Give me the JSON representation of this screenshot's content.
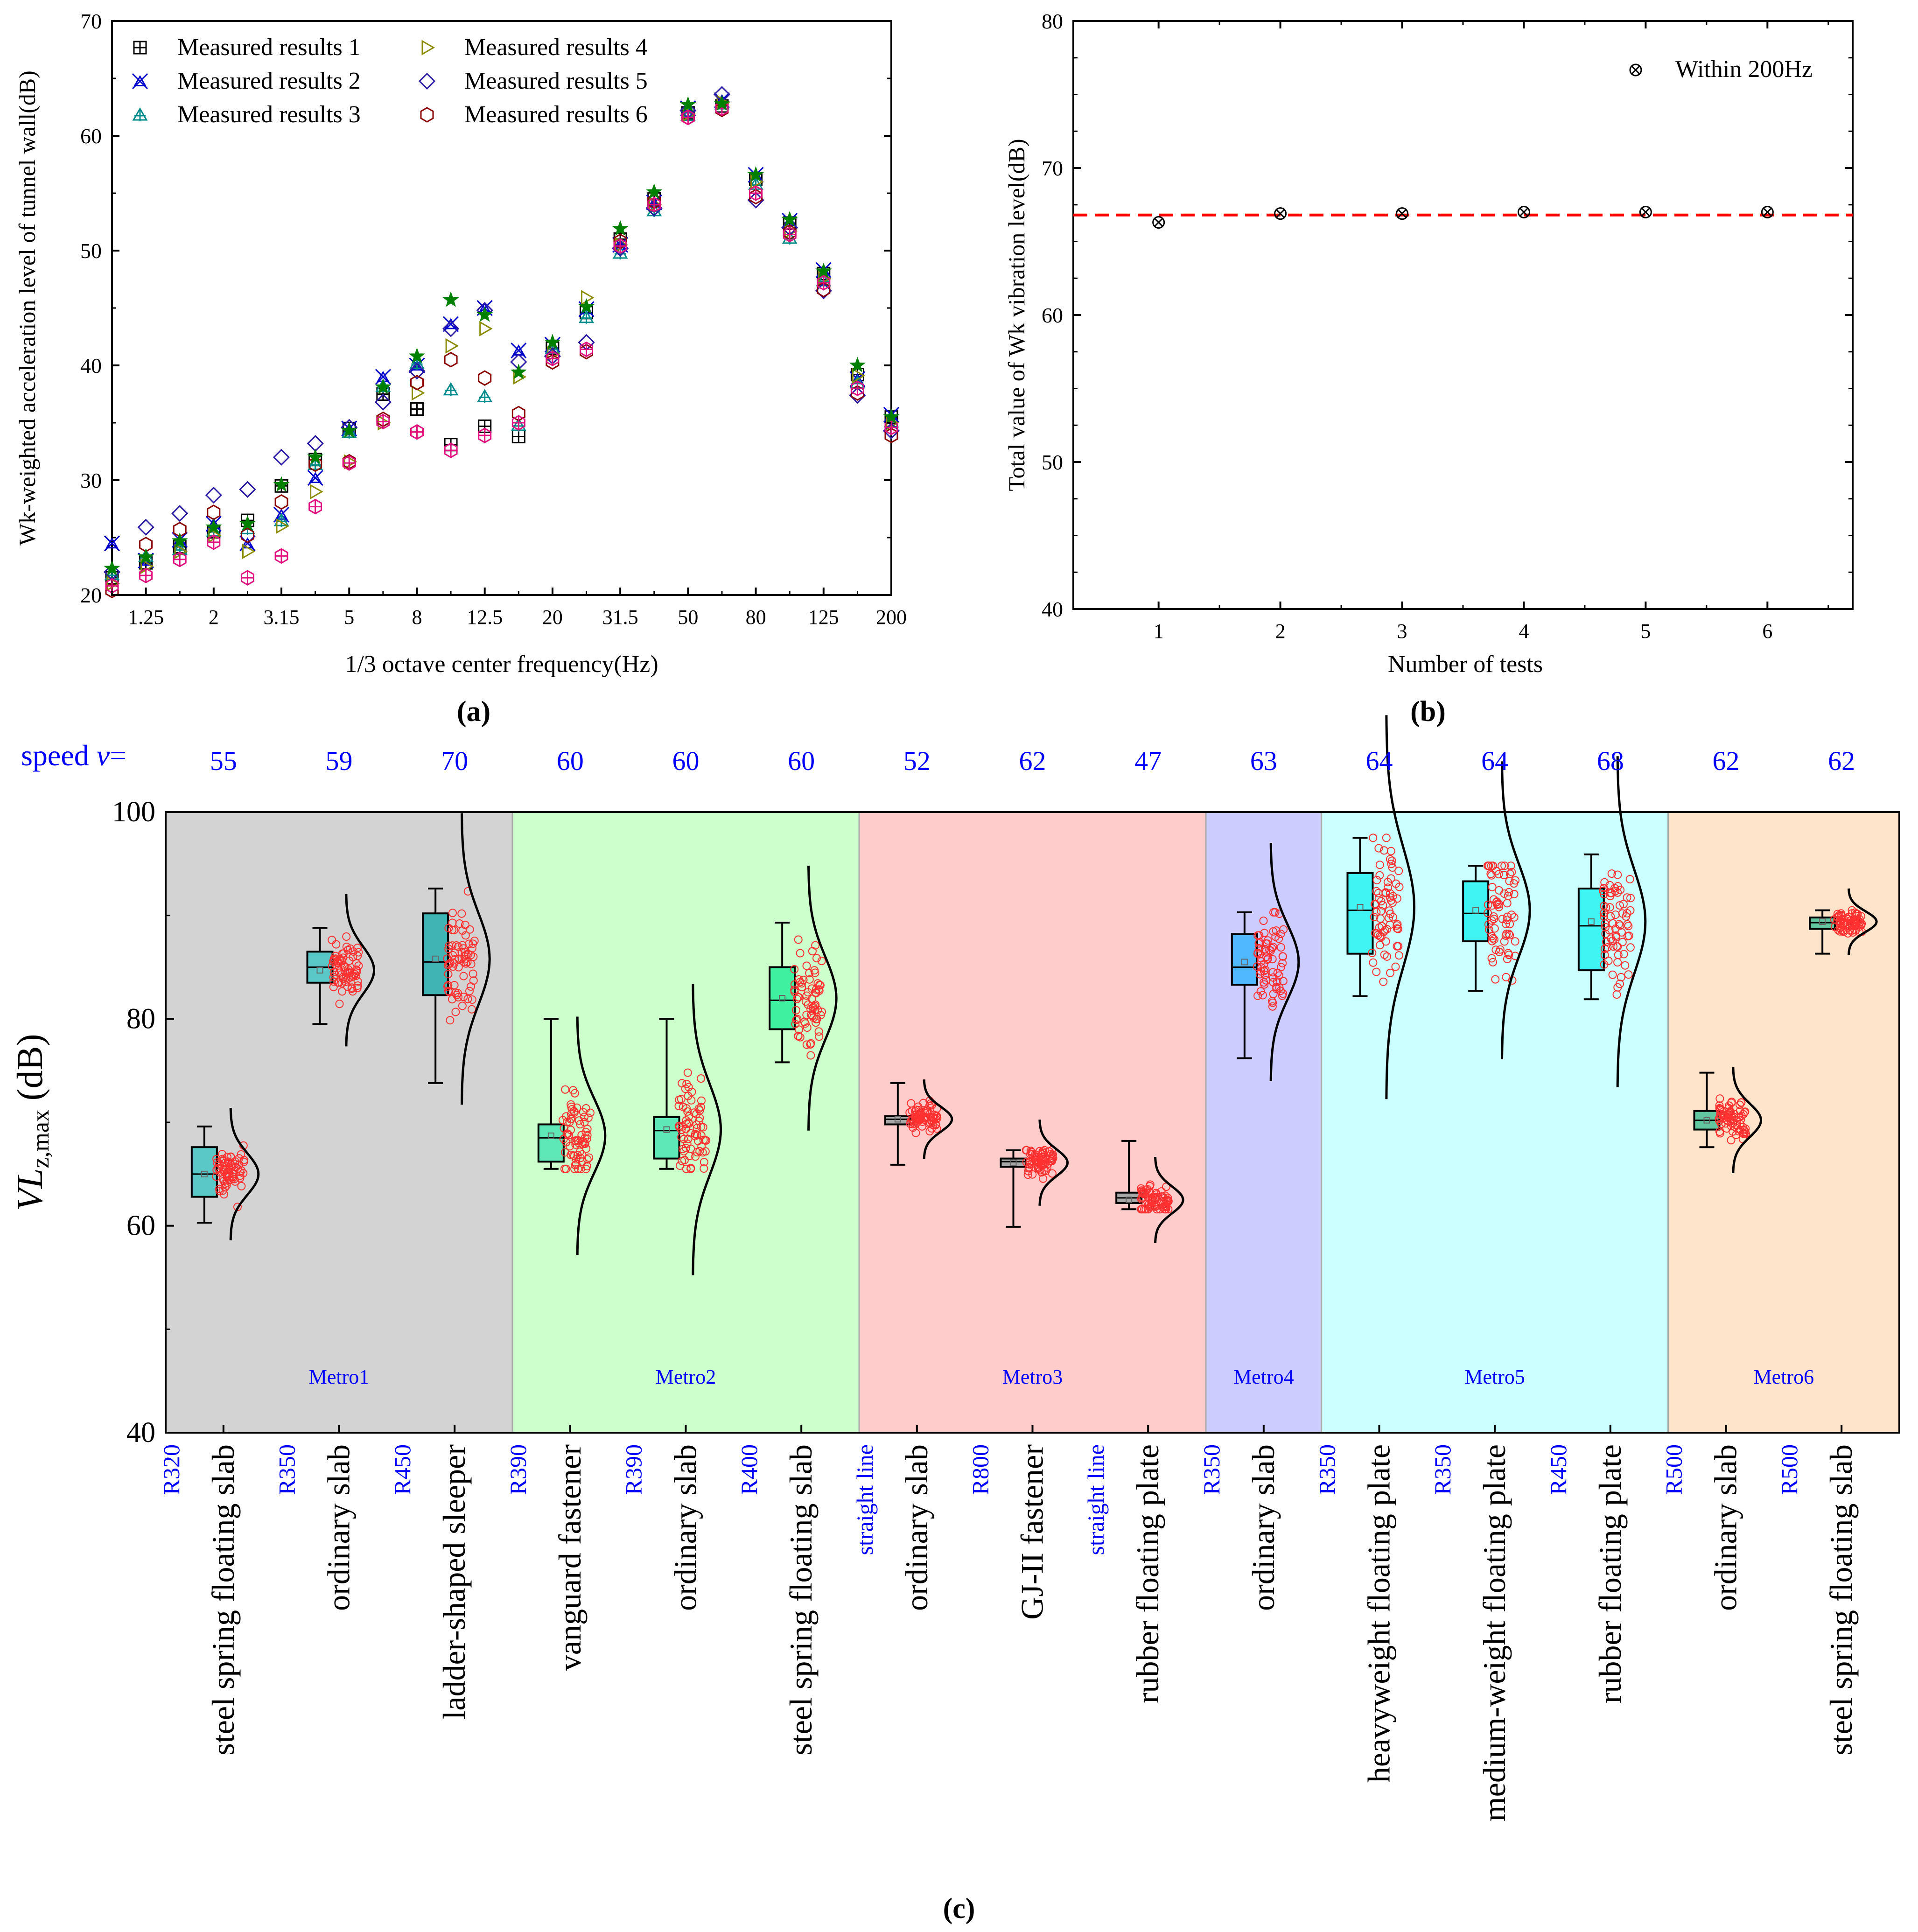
{
  "colors": {
    "series": [
      "#000000",
      "#0000cc",
      "#008b8b",
      "#8b8b00",
      "#2a1aa6",
      "#8b0000"
    ],
    "extra_marker": "#e0117f",
    "star_marker": "#008000",
    "dashed_line": "#ff0000",
    "speed_text": "#0000ff",
    "radius_text": "#0000ff",
    "metro_text": "#0000ff",
    "dots": "#ff3030"
  },
  "panel_a": {
    "caption": "(a)",
    "chart_data": {
      "type": "scatter",
      "title": "",
      "xlabel": "1/3 octave center frequency(Hz)",
      "ylabel": "Wk-weighted acceleration level of tunnel wall(dB)",
      "ylim": [
        20,
        70
      ],
      "yticks": [
        "20",
        "30",
        "40",
        "50",
        "60",
        "70"
      ],
      "categories": [
        "1",
        "1.25",
        "1.6",
        "2",
        "2.5",
        "3.15",
        "4",
        "5",
        "6.3",
        "8",
        "10",
        "12.5",
        "16",
        "20",
        "25",
        "31.5",
        "40",
        "50",
        "63",
        "80",
        "100",
        "125",
        "160",
        "200"
      ],
      "tick_labels": [
        "1.25",
        "2",
        "3.15",
        "5",
        "8",
        "12.5",
        "20",
        "31.5",
        "50",
        "80",
        "125",
        "200"
      ],
      "legend": [
        "Measured results 1",
        "Measured results 2",
        "Measured results 3",
        "Measured results 4",
        "Measured results 5",
        "Measured results 6"
      ],
      "legend_position": "top-left",
      "series": [
        {
          "name": "Measured results 1",
          "marker": "square-plus",
          "values": [
            21.5,
            22.8,
            24.2,
            25.5,
            26.5,
            29.5,
            31.8,
            34.5,
            37.5,
            36.2,
            33.1,
            34.7,
            33.8,
            41.5,
            44.6,
            51.0,
            54.5,
            62.0,
            62.6,
            56.2,
            52.4,
            48.0,
            39.2,
            35.5
          ]
        },
        {
          "name": "Measured results 2",
          "marker": "x-triangle",
          "values": [
            24.5,
            23.0,
            24.8,
            26.2,
            24.5,
            27.0,
            30.2,
            34.5,
            39.0,
            40.0,
            43.6,
            45.0,
            41.3,
            41.8,
            44.9,
            50.5,
            54.2,
            62.4,
            63.1,
            56.6,
            52.6,
            48.3,
            38.8,
            35.7
          ]
        },
        {
          "name": "Measured results 3",
          "marker": "triangle-plus",
          "values": [
            21.8,
            23.4,
            24.0,
            25.6,
            25.8,
            26.5,
            31.4,
            34.2,
            38.2,
            40.2,
            37.9,
            37.3,
            34.8,
            41.5,
            44.2,
            49.8,
            53.5,
            61.8,
            62.8,
            55.8,
            51.1,
            47.4,
            38.5,
            35.1
          ]
        },
        {
          "name": "Measured results 4",
          "marker": "triangle-right",
          "values": [
            21.0,
            22.5,
            23.8,
            25.2,
            23.8,
            26.0,
            29.0,
            31.6,
            35.0,
            37.6,
            41.7,
            43.2,
            39.0,
            41.0,
            45.9,
            50.5,
            54.0,
            61.9,
            62.9,
            56.0,
            51.7,
            47.6,
            39.1,
            35.0
          ]
        },
        {
          "name": "Measured results 5",
          "marker": "diamond",
          "values": [
            22.0,
            25.9,
            27.1,
            28.7,
            29.2,
            32.0,
            33.2,
            34.6,
            36.8,
            39.5,
            43.2,
            44.8,
            40.3,
            40.8,
            42.0,
            50.2,
            53.7,
            62.2,
            63.6,
            54.4,
            52.0,
            46.5,
            37.4,
            34.3
          ]
        },
        {
          "name": "Measured results 6",
          "marker": "hexagon",
          "values": [
            20.4,
            24.4,
            25.7,
            27.2,
            25.2,
            28.1,
            31.4,
            31.6,
            35.3,
            38.5,
            40.5,
            38.9,
            35.8,
            40.3,
            41.2,
            50.8,
            54.3,
            61.6,
            62.3,
            54.7,
            51.6,
            46.6,
            37.6,
            33.9
          ]
        }
      ],
      "extra_series": [
        {
          "name": "magenta-hexagon",
          "values": [
            20.8,
            21.7,
            23.1,
            24.6,
            21.5,
            23.4,
            27.7,
            31.5,
            35.1,
            34.2,
            32.6,
            33.9,
            35.0,
            40.6,
            41.4,
            50.4,
            54.0,
            61.6,
            62.4,
            55.0,
            51.4,
            47.2,
            38.0,
            34.6
          ]
        },
        {
          "name": "green-star",
          "values": [
            22.3,
            23.3,
            24.7,
            25.9,
            26.2,
            29.6,
            32.0,
            34.3,
            38.1,
            40.8,
            45.7,
            44.4,
            39.4,
            42.0,
            45.1,
            51.9,
            55.1,
            62.7,
            62.8,
            56.6,
            52.7,
            48.2,
            40.0,
            35.5
          ]
        }
      ]
    }
  },
  "panel_b": {
    "caption": "(b)",
    "chart_data": {
      "type": "scatter",
      "title": "",
      "xlabel": "Number of tests",
      "ylabel": "Total value of Wk vibration level(dB)",
      "x": [
        1,
        2,
        3,
        4,
        5,
        6
      ],
      "xticks": [
        "1",
        "2",
        "3",
        "4",
        "5",
        "6"
      ],
      "values": [
        66.3,
        66.9,
        66.9,
        67.0,
        67.0,
        67.0
      ],
      "ylim": [
        40,
        80
      ],
      "yticks": [
        "40",
        "50",
        "60",
        "70",
        "80"
      ],
      "reference_line": 66.8,
      "legend": [
        "Within 200Hz"
      ],
      "legend_position": "top-right"
    }
  },
  "panel_c": {
    "caption": "(c)",
    "speed_label": "speed",
    "speed_symbol": "v",
    "speed_suffix": "=",
    "chart_data": {
      "type": "box",
      "ylabel_main": "VL",
      "ylabel_sub": "z,max",
      "ylabel_unit": "(dB)",
      "ylim": [
        40,
        100
      ],
      "yticks": [
        "40",
        "60",
        "80",
        "100"
      ],
      "groups": [
        {
          "label": "Metro1",
          "color": "#d3d3d3",
          "span": [
            0,
            3
          ]
        },
        {
          "label": "Metro2",
          "color": "#ccffcc",
          "span": [
            3,
            6
          ]
        },
        {
          "label": "Metro3",
          "color": "#ffcccc",
          "span": [
            6,
            9
          ]
        },
        {
          "label": "Metro4",
          "color": "#ccccff",
          "span": [
            9,
            10
          ]
        },
        {
          "label": "Metro5",
          "color": "#ccffff",
          "span": [
            10,
            13
          ]
        },
        {
          "label": "Metro6",
          "color": "#ffe4cc",
          "span": [
            13,
            15
          ]
        }
      ],
      "boxes": [
        {
          "speed": "55",
          "radius": "R320",
          "track": "steel spring floating slab",
          "min": 60.3,
          "q1": 62.8,
          "median": 65.0,
          "mean": 65.0,
          "q3": 67.6,
          "max": 69.6,
          "color": "#5bc8c8",
          "spread": 2.0
        },
        {
          "speed": "59",
          "radius": "R350",
          "track": "ordinary slab",
          "min": 79.5,
          "q1": 83.5,
          "median": 85.0,
          "mean": 84.7,
          "q3": 86.5,
          "max": 88.8,
          "color": "#5bc8c8",
          "spread": 2.3
        },
        {
          "speed": "70",
          "radius": "R450",
          "track": "ladder-shaped sleeper",
          "min": 73.8,
          "q1": 82.3,
          "median": 85.5,
          "mean": 85.8,
          "q3": 90.2,
          "max": 92.6,
          "color": "#40b4b4",
          "spread": 4.4
        },
        {
          "speed": "60",
          "radius": "R390",
          "track": "vanguard fastener",
          "min": 65.5,
          "q1": 66.2,
          "median": 68.5,
          "mean": 68.7,
          "q3": 69.8,
          "max": 80.0,
          "color": "#5ee8b8",
          "spread": 3.6
        },
        {
          "speed": "60",
          "radius": "R390",
          "track": "ordinary slab",
          "min": 65.5,
          "q1": 66.5,
          "median": 69.2,
          "mean": 69.3,
          "q3": 70.5,
          "max": 80.0,
          "color": "#5ee8b8",
          "spread": 4.4
        },
        {
          "speed": "60",
          "radius": "R400",
          "track": "steel spring floating slab",
          "min": 75.8,
          "q1": 79.0,
          "median": 81.8,
          "mean": 82.0,
          "q3": 85.0,
          "max": 89.3,
          "color": "#3ef0a0",
          "spread": 4.0
        },
        {
          "speed": "52",
          "radius": "straight line",
          "track": "ordinary slab",
          "min": 65.9,
          "q1": 69.8,
          "median": 70.3,
          "mean": 70.3,
          "q3": 70.6,
          "max": 73.8,
          "color": "#a8a8a8",
          "spread": 1.2
        },
        {
          "speed": "62",
          "radius": "R800",
          "track": "GJ-II fastener",
          "min": 59.9,
          "q1": 65.7,
          "median": 66.2,
          "mean": 66.1,
          "q3": 66.5,
          "max": 67.3,
          "color": "#a8a8a8",
          "spread": 1.3
        },
        {
          "speed": "47",
          "radius": "straight line",
          "track": "rubber floating plate",
          "min": 61.6,
          "q1": 62.2,
          "median": 62.7,
          "mean": 62.5,
          "q3": 63.2,
          "max": 68.2,
          "color": "#a8a8a8",
          "spread": 1.3
        },
        {
          "speed": "63",
          "radius": "R350",
          "track": "ordinary slab",
          "min": 76.2,
          "q1": 83.3,
          "median": 85.0,
          "mean": 85.5,
          "q3": 88.2,
          "max": 90.3,
          "color": "#50b8ff",
          "spread": 3.6
        },
        {
          "speed": "64",
          "radius": "R350",
          "track": "heavyweight floating plate",
          "min": 82.2,
          "q1": 86.3,
          "median": 90.5,
          "mean": 90.8,
          "q3": 94.1,
          "max": 97.5,
          "color": "#40f4f4",
          "spread": 5.8
        },
        {
          "speed": "64",
          "radius": "R350",
          "track": "medium-weight floating plate",
          "min": 82.7,
          "q1": 87.5,
          "median": 90.2,
          "mean": 90.5,
          "q3": 93.3,
          "max": 94.8,
          "color": "#40f4f4",
          "spread": 4.5
        },
        {
          "speed": "68",
          "radius": "R450",
          "track": "rubber floating plate",
          "min": 81.9,
          "q1": 84.7,
          "median": 89.0,
          "mean": 89.4,
          "q3": 92.6,
          "max": 95.9,
          "color": "#40f4f4",
          "spread": 5.0
        },
        {
          "speed": "62",
          "radius": "R500",
          "track": "ordinary slab",
          "min": 67.6,
          "q1": 69.3,
          "median": 70.2,
          "mean": 70.2,
          "q3": 71.1,
          "max": 74.8,
          "color": "#62c6a0",
          "spread": 1.6
        },
        {
          "speed": "62",
          "radius": "R500",
          "track": "steel spring floating slab",
          "min": 86.3,
          "q1": 88.7,
          "median": 89.3,
          "mean": 89.4,
          "q3": 89.8,
          "max": 90.5,
          "color": "#62c6a0",
          "spread": 1.0
        }
      ]
    }
  }
}
